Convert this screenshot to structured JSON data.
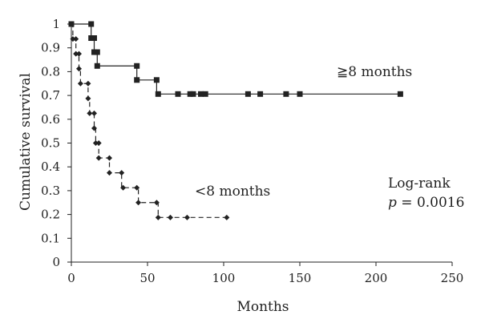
{
  "chart_data": {
    "type": "line",
    "xlabel": "Months",
    "ylabel": "Cumulative survival",
    "xlim": [
      0,
      250
    ],
    "ylim": [
      0,
      1
    ],
    "xticks": [
      0,
      50,
      100,
      150,
      200,
      250
    ],
    "yticks": [
      0,
      0.1,
      0.2,
      0.3,
      0.4,
      0.5,
      0.6,
      0.7,
      0.8,
      0.9,
      1
    ],
    "ytick_labels": [
      "0",
      "0.1",
      "0.2",
      "0.3",
      "0.4",
      "0.5",
      "0.6",
      "0.7",
      "0.8",
      "0.9",
      "1"
    ],
    "grid": false,
    "series": [
      {
        "name": "≧8 months",
        "line_style": "solid",
        "marker": "square",
        "color": "#222222",
        "steps": [
          [
            0,
            1.0
          ],
          [
            13,
            0.941
          ],
          [
            15,
            0.882
          ],
          [
            17,
            0.824
          ],
          [
            43,
            0.765
          ],
          [
            56,
            0.706
          ],
          [
            216,
            0.706
          ]
        ],
        "markers": [
          [
            0,
            1.0
          ],
          [
            13,
            1.0
          ],
          [
            13,
            0.941
          ],
          [
            15,
            0.941
          ],
          [
            15,
            0.882
          ],
          [
            17,
            0.882
          ],
          [
            17,
            0.824
          ],
          [
            43,
            0.824
          ],
          [
            43,
            0.765
          ],
          [
            56,
            0.765
          ],
          [
            57,
            0.706
          ],
          [
            70,
            0.706
          ],
          [
            78,
            0.706
          ],
          [
            80,
            0.706
          ],
          [
            85,
            0.706
          ],
          [
            88,
            0.706
          ],
          [
            116,
            0.706
          ],
          [
            124,
            0.706
          ],
          [
            141,
            0.706
          ],
          [
            150,
            0.706
          ],
          [
            216,
            0.706
          ]
        ]
      },
      {
        "name": "<8 months",
        "line_style": "dashed",
        "marker": "diamond",
        "color": "#222222",
        "steps": [
          [
            0,
            1.0
          ],
          [
            1,
            0.9375
          ],
          [
            3,
            0.875
          ],
          [
            5,
            0.8125
          ],
          [
            6,
            0.75
          ],
          [
            11,
            0.6875
          ],
          [
            12,
            0.625
          ],
          [
            15,
            0.5625
          ],
          [
            16,
            0.5
          ],
          [
            18,
            0.4375
          ],
          [
            25,
            0.375
          ],
          [
            33,
            0.3125
          ],
          [
            44,
            0.25
          ],
          [
            57,
            0.1875
          ],
          [
            102,
            0.1875
          ]
        ],
        "markers": [
          [
            1,
            0.9375
          ],
          [
            3,
            0.9375
          ],
          [
            3,
            0.875
          ],
          [
            5,
            0.875
          ],
          [
            5,
            0.8125
          ],
          [
            6,
            0.75
          ],
          [
            11,
            0.75
          ],
          [
            11,
            0.6875
          ],
          [
            12,
            0.625
          ],
          [
            15,
            0.625
          ],
          [
            15,
            0.5625
          ],
          [
            16,
            0.5
          ],
          [
            18,
            0.5
          ],
          [
            18,
            0.4375
          ],
          [
            25,
            0.4375
          ],
          [
            25,
            0.375
          ],
          [
            33,
            0.375
          ],
          [
            34,
            0.3125
          ],
          [
            43,
            0.3125
          ],
          [
            44,
            0.25
          ],
          [
            56,
            0.25
          ],
          [
            57,
            0.1875
          ],
          [
            65,
            0.1875
          ],
          [
            76,
            0.1875
          ],
          [
            102,
            0.1875
          ]
        ]
      }
    ],
    "annotations": {
      "series_label_long": "≧8 months",
      "series_label_short": "<8 months",
      "test_name": "Log-rank",
      "p_symbol": "p",
      "p_value_text": " = 0.0016"
    }
  }
}
